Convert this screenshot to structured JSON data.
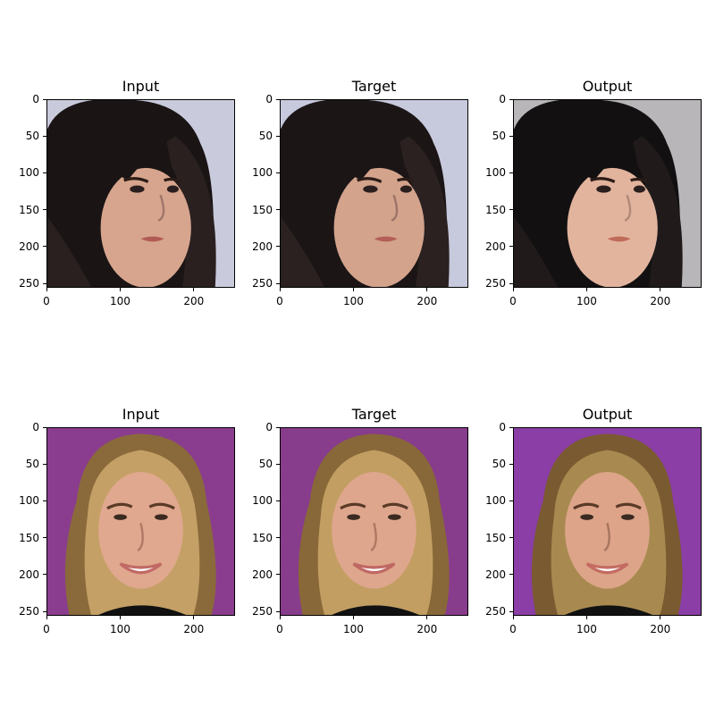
{
  "rows": [
    {
      "panels": [
        {
          "title": "Input"
        },
        {
          "title": "Target"
        },
        {
          "title": "Output"
        }
      ]
    },
    {
      "panels": [
        {
          "title": "Input"
        },
        {
          "title": "Target"
        },
        {
          "title": "Output"
        }
      ]
    }
  ],
  "axes": {
    "xticks": [
      "0",
      "100",
      "200"
    ],
    "yticks": [
      "0",
      "50",
      "100",
      "150",
      "200",
      "250"
    ],
    "xtick_values": [
      0,
      100,
      200
    ],
    "ytick_values": [
      0,
      50,
      100,
      150,
      200,
      250
    ],
    "range": [
      0,
      256
    ]
  }
}
